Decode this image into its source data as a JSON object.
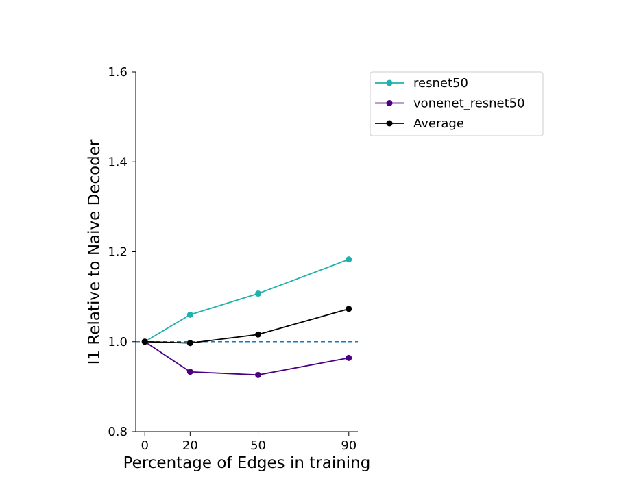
{
  "chart_data": {
    "type": "line",
    "title": "",
    "xlabel": "Percentage of Edges in training",
    "ylabel": "I1 Relative to Naive Decoder",
    "x": [
      0,
      20,
      50,
      90
    ],
    "xticks": [
      0,
      20,
      50,
      90
    ],
    "yticks": [
      0.8,
      1.0,
      1.2,
      1.4,
      1.6
    ],
    "xlim": [
      -4,
      94
    ],
    "ylim": [
      0.8,
      1.6
    ],
    "grid": false,
    "legend_position": "outside-top-right",
    "reference_line": {
      "y": 1.0,
      "style": "dashed",
      "color": "#1f77b4"
    },
    "series": [
      {
        "name": "resnet50",
        "color": "#20b2aa",
        "values": [
          1.0,
          1.06,
          1.107,
          1.183
        ]
      },
      {
        "name": "vonenet_resnet50",
        "color": "#4b0082",
        "values": [
          1.0,
          0.933,
          0.926,
          0.964
        ]
      },
      {
        "name": "Average",
        "color": "#000000",
        "values": [
          1.0,
          0.997,
          1.016,
          1.073
        ]
      }
    ]
  }
}
